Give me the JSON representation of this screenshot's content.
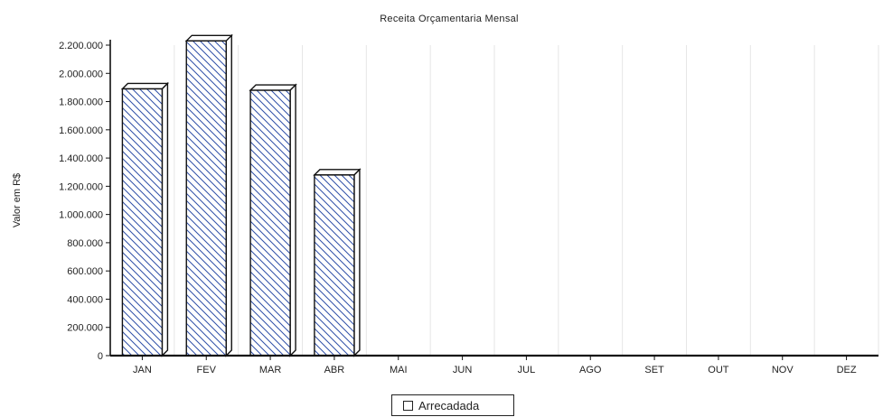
{
  "chart_data": {
    "type": "bar",
    "title": "Receita Orçamentaria Mensal",
    "xlabel": "",
    "ylabel": "Valor em R$",
    "categories": [
      "JAN",
      "FEV",
      "MAR",
      "ABR",
      "MAI",
      "JUN",
      "JUL",
      "AGO",
      "SET",
      "OUT",
      "NOV",
      "DEZ"
    ],
    "series": [
      {
        "name": "Arrecadada",
        "values": [
          1890000,
          2230000,
          1880000,
          1280000,
          0,
          0,
          0,
          0,
          0,
          0,
          0,
          0
        ]
      }
    ],
    "ylim": [
      0,
      2200000
    ],
    "yticks": [
      "0",
      "200.000",
      "400.000",
      "600.000",
      "800.000",
      "1.000.000",
      "1.200.000",
      "1.400.000",
      "1.600.000",
      "1.800.000",
      "2.000.000",
      "2.200.000"
    ],
    "grid": true,
    "legend_position": "bottom-center",
    "bar_fill": "hatched",
    "colors": {
      "hatch": "#2f4fa8",
      "bar_border": "#111111",
      "grid": "#e6e6e6"
    }
  }
}
